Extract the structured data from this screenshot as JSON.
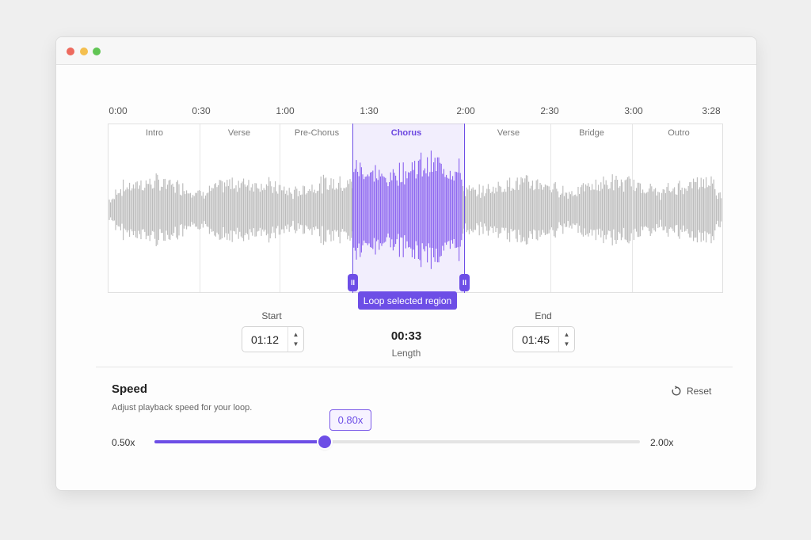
{
  "timeline": {
    "ticks": [
      "0:00",
      "0:30",
      "1:00",
      "1:30",
      "2:00",
      "2:30",
      "3:00",
      "3:28"
    ],
    "sections": [
      "Intro",
      "Verse",
      "Pre-Chorus",
      "Chorus",
      "Verse",
      "Bridge",
      "Outro"
    ],
    "active_section": "Chorus"
  },
  "loop_button": {
    "label": "Loop selected region"
  },
  "start": {
    "label": "Start",
    "value": "01:12"
  },
  "length": {
    "value": "00:33",
    "label": "Length"
  },
  "end": {
    "label": "End",
    "value": "01:45"
  },
  "speed": {
    "title": "Speed",
    "subtitle": "Adjust playback speed for your loop.",
    "reset_label": "Reset",
    "current": "0.80x",
    "min_label": "0.50x",
    "max_label": "2.00x",
    "value": 0.8,
    "min": 0.5,
    "max": 2.0
  },
  "colors": {
    "accent": "#6d4ee6",
    "wave_gray": "#b9b9b9",
    "wave_active": "#8b63f0"
  }
}
